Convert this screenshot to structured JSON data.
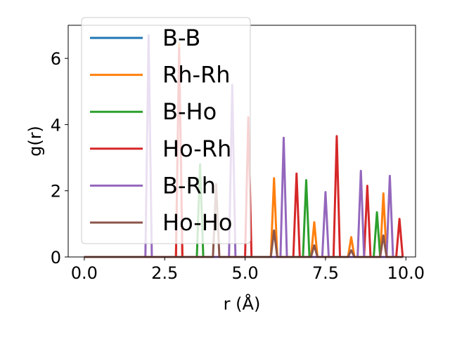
{
  "chart_data": {
    "type": "line",
    "title": "",
    "xlabel": "r (Å)",
    "ylabel": "g(r)",
    "xlim": [
      -0.5,
      10.3
    ],
    "ylim": [
      0,
      7.0
    ],
    "xticks": [
      0.0,
      2.5,
      5.0,
      7.5,
      10.0
    ],
    "xtick_labels": [
      "0.0",
      "2.5",
      "5.0",
      "7.5",
      "10.0"
    ],
    "yticks": [
      0,
      2,
      4,
      6
    ],
    "ytick_labels": [
      "0",
      "2",
      "4",
      "6"
    ],
    "grid": false,
    "legend": "upper-left",
    "series": [
      {
        "name": "B-B",
        "color": "#1f77b4",
        "peaks": []
      },
      {
        "name": "Rh-Rh",
        "color": "#ff7f0e",
        "peaks": [
          [
            2.95,
            6.45
          ],
          [
            5.9,
            2.38
          ],
          [
            7.15,
            1.05
          ],
          [
            8.3,
            0.6
          ],
          [
            9.3,
            1.92
          ]
        ]
      },
      {
        "name": "B-Ho",
        "color": "#2ca02c",
        "peaks": [
          [
            3.6,
            2.8
          ],
          [
            6.9,
            2.32
          ],
          [
            9.1,
            1.35
          ]
        ]
      },
      {
        "name": "Ho-Rh",
        "color": "#d62728",
        "peaks": [
          [
            2.95,
            6.3
          ],
          [
            5.1,
            4.22
          ],
          [
            6.6,
            2.52
          ],
          [
            7.85,
            3.65
          ],
          [
            8.8,
            2.15
          ],
          [
            9.8,
            1.15
          ]
        ]
      },
      {
        "name": "B-Rh",
        "color": "#9467bd",
        "peaks": [
          [
            2.0,
            6.7
          ],
          [
            4.6,
            5.2
          ],
          [
            6.2,
            3.6
          ],
          [
            7.5,
            1.96
          ],
          [
            8.6,
            2.6
          ],
          [
            9.5,
            2.45
          ]
        ]
      },
      {
        "name": "Ho-Ho",
        "color": "#8c564b",
        "peaks": [
          [
            4.1,
            2.2
          ],
          [
            5.9,
            0.8
          ],
          [
            7.15,
            0.35
          ],
          [
            8.3,
            0.2
          ],
          [
            9.3,
            0.65
          ]
        ]
      }
    ]
  }
}
